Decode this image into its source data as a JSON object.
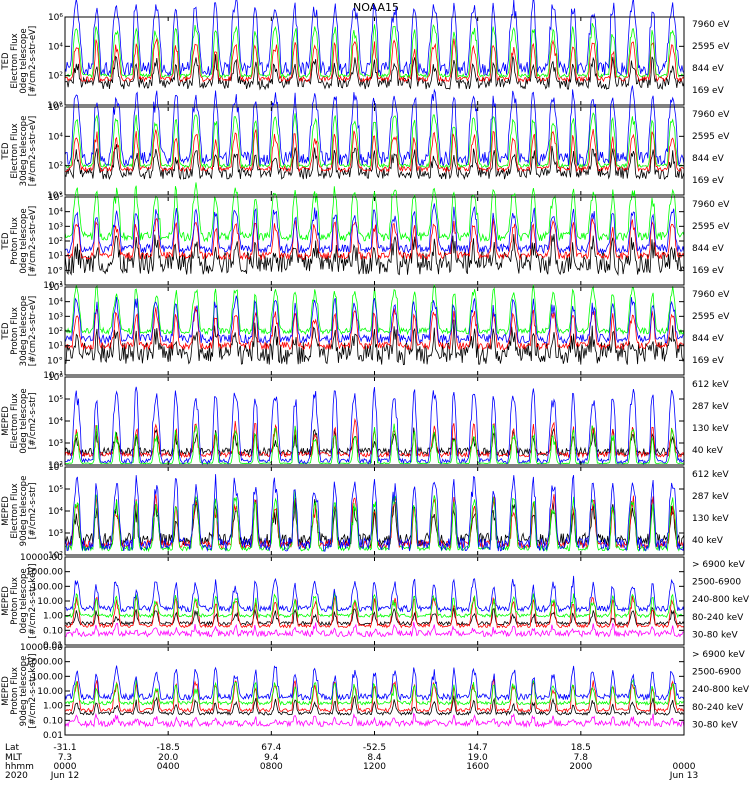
{
  "title": "NOAA15",
  "colors": {
    "blue": "#0000ff",
    "red": "#ff0000",
    "green": "#00ff00",
    "black": "#000000",
    "magenta": "#ff00ff"
  },
  "chart_data": [
    {
      "type": "line",
      "scale": "log",
      "ylim": [
        1,
        1000000.0
      ],
      "ylabel": [
        "TED",
        "Electron Flux",
        "0deg telescope",
        "[#/cm2-s-str-eV]"
      ],
      "yticks": [
        [
          1,
          "10°"
        ],
        [
          100,
          "10²"
        ],
        [
          10000,
          "10⁴"
        ],
        [
          1000000,
          "10⁶"
        ]
      ],
      "series": [
        {
          "name": "7960 eV",
          "color": "black",
          "base": 30,
          "noise": 2.5,
          "peak": 50
        },
        {
          "name": "2595 eV",
          "color": "red",
          "base": 60,
          "noise": 1.5,
          "peak": 400
        },
        {
          "name": "844 eV",
          "color": "green",
          "base": 100,
          "noise": 1.3,
          "peak": 3000
        },
        {
          "name": "169 eV",
          "color": "blue",
          "base": 300,
          "noise": 3,
          "peak": 30000
        }
      ]
    },
    {
      "type": "line",
      "scale": "log",
      "ylim": [
        1,
        1000000.0
      ],
      "ylabel": [
        "TED",
        "Electron Flux",
        "30deg telescope",
        "[#/cm2-s-str-eV]"
      ],
      "yticks": [
        [
          1,
          "10°"
        ],
        [
          100,
          "10²"
        ],
        [
          10000,
          "10⁴"
        ],
        [
          1000000,
          "10⁶"
        ]
      ],
      "series": [
        {
          "name": "7960 eV",
          "color": "black",
          "base": 30,
          "noise": 2.5,
          "peak": 50
        },
        {
          "name": "2595 eV",
          "color": "red",
          "base": 60,
          "noise": 1.5,
          "peak": 400
        },
        {
          "name": "844 eV",
          "color": "green",
          "base": 100,
          "noise": 1.3,
          "peak": 3000
        },
        {
          "name": "169 eV",
          "color": "blue",
          "base": 300,
          "noise": 3,
          "peak": 30000
        }
      ]
    },
    {
      "type": "line",
      "scale": "log",
      "ylim": [
        0.1,
        100000
      ],
      "ylabel": [
        "TED",
        "Proton Flux",
        "0deg telescope",
        "[#/cm2-s-str-eV]"
      ],
      "yticks": [
        [
          0.1,
          "10⁻¹"
        ],
        [
          1,
          "10°"
        ],
        [
          10,
          "10¹"
        ],
        [
          100,
          "10²"
        ],
        [
          1000,
          "10³"
        ],
        [
          10000,
          "10⁴"
        ],
        [
          100000,
          "10⁵"
        ]
      ],
      "series": [
        {
          "name": "7960 eV",
          "color": "black",
          "base": 3,
          "noise": 6,
          "peak": 30
        },
        {
          "name": "2595 eV",
          "color": "red",
          "base": 10,
          "noise": 1.8,
          "peak": 300
        },
        {
          "name": "844 eV",
          "color": "green",
          "base": 200,
          "noise": 2,
          "peak": 2000
        },
        {
          "name": "169 eV",
          "color": "blue",
          "base": 30,
          "noise": 2,
          "peak": 600
        }
      ]
    },
    {
      "type": "line",
      "scale": "log",
      "ylim": [
        0.1,
        100000
      ],
      "ylabel": [
        "TED",
        "Proton Flux",
        "30deg telescope",
        "[#/cm2-s-str-eV]"
      ],
      "yticks": [
        [
          0.1,
          "10⁻¹"
        ],
        [
          1,
          "10°"
        ],
        [
          10,
          "10¹"
        ],
        [
          100,
          "10²"
        ],
        [
          1000,
          "10³"
        ],
        [
          10000,
          "10⁴"
        ],
        [
          100000,
          "10⁵"
        ]
      ],
      "series": [
        {
          "name": "7960 eV",
          "color": "black",
          "base": 3,
          "noise": 6,
          "peak": 30
        },
        {
          "name": "2595 eV",
          "color": "red",
          "base": 10,
          "noise": 1.8,
          "peak": 300
        },
        {
          "name": "844 eV",
          "color": "green",
          "base": 100,
          "noise": 1.6,
          "peak": 1000
        },
        {
          "name": "169 eV",
          "color": "blue",
          "base": 30,
          "noise": 2,
          "peak": 500
        }
      ]
    },
    {
      "type": "line",
      "scale": "log",
      "ylim": [
        100,
        1000000
      ],
      "ylabel": [
        "MEPED",
        "Electron Flux",
        "0deg telescope",
        "[#/cm2-s-str]"
      ],
      "yticks": [
        [
          100,
          "10²"
        ],
        [
          1000,
          "10³"
        ],
        [
          10000,
          "10⁴"
        ],
        [
          100000,
          "10⁵"
        ],
        [
          1000000,
          "10⁶"
        ]
      ],
      "series": [
        {
          "name": "612 keV",
          "color": "black",
          "base": 400,
          "noise": 1.5,
          "peak": 10
        },
        {
          "name": "287 keV",
          "color": "red",
          "base": 300,
          "noise": 1.3,
          "peak": 30
        },
        {
          "name": "130 keV",
          "color": "green",
          "base": 120,
          "noise": 1.05,
          "peak": 50
        },
        {
          "name": "40 keV",
          "color": "blue",
          "base": 150,
          "noise": 1.3,
          "peak": 2000
        }
      ]
    },
    {
      "type": "line",
      "scale": "log",
      "ylim": [
        100,
        1000000
      ],
      "ylabel": [
        "MEPED",
        "Electron Flux",
        "90deg telescope",
        "[#/cm2-s-str]"
      ],
      "yticks": [
        [
          100,
          "10²"
        ],
        [
          1000,
          "10³"
        ],
        [
          10000,
          "10⁴"
        ],
        [
          100000,
          "10⁵"
        ],
        [
          1000000,
          "10⁶"
        ]
      ],
      "series": [
        {
          "name": "612 keV",
          "color": "black",
          "base": 500,
          "noise": 2,
          "peak": 50
        },
        {
          "name": "287 keV",
          "color": "red",
          "base": 300,
          "noise": 1.5,
          "peak": 150
        },
        {
          "name": "130 keV",
          "color": "green",
          "base": 200,
          "noise": 1.3,
          "peak": 300
        },
        {
          "name": "40 keV",
          "color": "blue",
          "base": 300,
          "noise": 2,
          "peak": 1000
        }
      ]
    },
    {
      "type": "line",
      "scale": "log",
      "ylim": [
        0.01,
        10000
      ],
      "ylabel": [
        "MEPED",
        "Proton Flux",
        "0deg telescope",
        "[#/cm2-s-str-keV]"
      ],
      "yticks": [
        [
          0.01,
          "0.01"
        ],
        [
          0.1,
          "0.10"
        ],
        [
          1,
          "1.00"
        ],
        [
          10,
          "10.00"
        ],
        [
          100,
          "100.00"
        ],
        [
          1000,
          "1000.00"
        ],
        [
          10000,
          "10000.00"
        ]
      ],
      "series": [
        {
          "name": "> 6900 keV",
          "color": "magenta",
          "base": 0.06,
          "noise": 1.6,
          "peak": 3
        },
        {
          "name": "2500-6900",
          "color": "black",
          "base": 0.3,
          "noise": 1.3,
          "peak": 10
        },
        {
          "name": "240-800 keV",
          "color": "red",
          "base": 0.2,
          "noise": 1.3,
          "peak": 100
        },
        {
          "name": "80-240 keV",
          "color": "green",
          "base": 1,
          "noise": 1.3,
          "peak": 30
        },
        {
          "name": "30-80 keV",
          "color": "blue",
          "base": 3,
          "noise": 1.6,
          "peak": 100
        }
      ]
    },
    {
      "type": "line",
      "scale": "log",
      "ylim": [
        0.01,
        10000
      ],
      "ylabel": [
        "MEPED",
        "Proton Flux",
        "90deg telescope",
        "[#/cm2-s-str-keV]"
      ],
      "yticks": [
        [
          0.01,
          "0.01"
        ],
        [
          0.1,
          "0.10"
        ],
        [
          1,
          "1.00"
        ],
        [
          10,
          "10.00"
        ],
        [
          100,
          "100.00"
        ],
        [
          1000,
          "1000.00"
        ],
        [
          10000,
          "10000.00"
        ]
      ],
      "series": [
        {
          "name": "> 6900 keV",
          "color": "magenta",
          "base": 0.06,
          "noise": 1.6,
          "peak": 3
        },
        {
          "name": "2500-6900",
          "color": "black",
          "base": 0.3,
          "noise": 1.3,
          "peak": 10
        },
        {
          "name": "240-800 keV",
          "color": "red",
          "base": 0.5,
          "noise": 1.3,
          "peak": 100
        },
        {
          "name": "80-240 keV",
          "color": "green",
          "base": 1.5,
          "noise": 1.3,
          "peak": 30
        },
        {
          "name": "30-80 keV",
          "color": "blue",
          "base": 4,
          "noise": 1.6,
          "peak": 100
        }
      ]
    }
  ],
  "x_axis": {
    "range_hours": [
      0,
      24
    ],
    "row_labels": [
      "Lat",
      "MLT",
      "hhmm",
      "2020"
    ],
    "ticks": [
      {
        "hour": 0,
        "rows": [
          "-31.1",
          "7.3",
          "0000",
          "Jun 12"
        ]
      },
      {
        "hour": 4,
        "rows": [
          "-18.5",
          "20.0",
          "0400",
          ""
        ]
      },
      {
        "hour": 8,
        "rows": [
          "67.4",
          "9.4",
          "0800",
          ""
        ]
      },
      {
        "hour": 12,
        "rows": [
          "-52.5",
          "8.4",
          "1200",
          ""
        ]
      },
      {
        "hour": 16,
        "rows": [
          "14.7",
          "19.0",
          "1600",
          ""
        ]
      },
      {
        "hour": 20,
        "rows": [
          "18.5",
          "7.8",
          "2000",
          ""
        ]
      },
      {
        "hour": 24,
        "rows": [
          "",
          "",
          "0000",
          "Jun 13"
        ]
      }
    ]
  }
}
